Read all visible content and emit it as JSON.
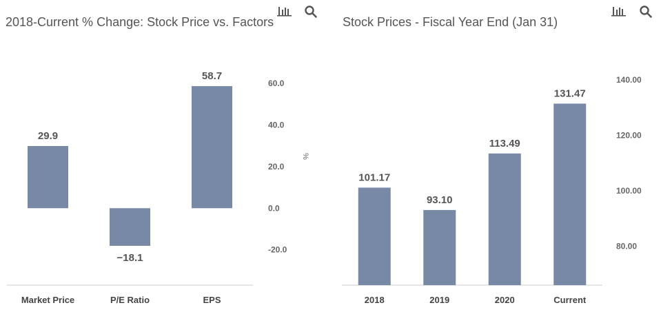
{
  "charts": [
    {
      "id": "pct-change",
      "title": "2018-Current % Change: Stock Price vs. Factors",
      "icons": [
        "bar-chart-icon",
        "search-icon"
      ]
    },
    {
      "id": "stock-prices",
      "title": "Stock Prices - Fiscal Year End (Jan 31)",
      "icons": [
        "bar-chart-icon",
        "search-icon"
      ]
    }
  ],
  "colors": {
    "bar": "#7889a6",
    "title": "#555555",
    "tick": "#666666",
    "category": "#444444",
    "value_label": "#555555",
    "axis_line": "#cccccc"
  },
  "chart_data": [
    {
      "type": "bar",
      "title": "2018-Current % Change: Stock Price vs. Factors",
      "categories": [
        "Market Price",
        "P/E Ratio",
        "EPS"
      ],
      "values": [
        29.9,
        -18.1,
        58.7
      ],
      "value_labels": [
        "29.9",
        "−18.1",
        "58.7"
      ],
      "ylabel": "%",
      "yticks": [
        60,
        40,
        20,
        0,
        -20
      ],
      "ytick_labels": [
        "60.0",
        "40.0",
        "20.0",
        "0.0",
        "-20.0"
      ],
      "ylim": [
        -37,
        67
      ],
      "y_axis_side": "right",
      "grid": false
    },
    {
      "type": "bar",
      "title": "Stock Prices - Fiscal Year End (Jan 31)",
      "categories": [
        "2018",
        "2019",
        "2020",
        "Current"
      ],
      "values": [
        101.17,
        93.1,
        113.49,
        131.47
      ],
      "value_labels": [
        "101.17",
        "93.10",
        "113.49",
        "131.47"
      ],
      "ylabel": "",
      "yticks": [
        140,
        120,
        100,
        80
      ],
      "ytick_labels": [
        "140.00",
        "120.00",
        "100.00",
        "80.00"
      ],
      "ylim": [
        66,
        144
      ],
      "y_axis_side": "right",
      "grid": false
    }
  ]
}
